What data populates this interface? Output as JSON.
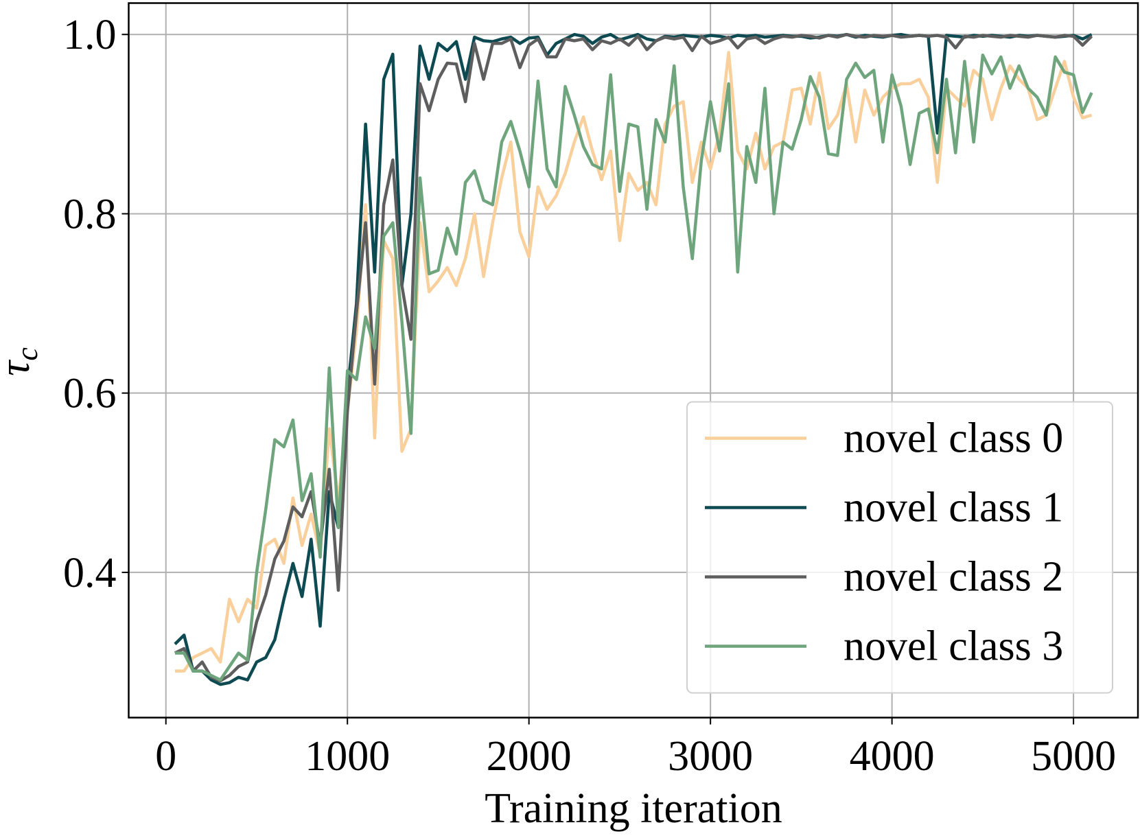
{
  "chart_data": {
    "type": "line",
    "xlabel": "Training iteration",
    "ylabel_symbol": "τ",
    "ylabel_subscript": "c",
    "xlim": [
      -205,
      5355
    ],
    "ylim": [
      0.238,
      1.035
    ],
    "xticks": [
      0,
      1000,
      2000,
      3000,
      4000,
      5000
    ],
    "yticks": [
      0.4,
      0.6,
      0.8,
      {
        "value": 1,
        "label": "1.0"
      }
    ],
    "grid": true,
    "legend": "lower right",
    "x": [
      50,
      100,
      150,
      200,
      250,
      300,
      350,
      400,
      450,
      500,
      550,
      600,
      650,
      700,
      750,
      800,
      850,
      900,
      950,
      1000,
      1050,
      1100,
      1150,
      1200,
      1250,
      1300,
      1350,
      1400,
      1450,
      1500,
      1550,
      1600,
      1650,
      1700,
      1750,
      1800,
      1850,
      1900,
      1950,
      2000,
      2050,
      2100,
      2150,
      2200,
      2250,
      2300,
      2350,
      2400,
      2450,
      2500,
      2550,
      2600,
      2650,
      2700,
      2750,
      2800,
      2850,
      2900,
      2950,
      3000,
      3050,
      3100,
      3150,
      3200,
      3250,
      3300,
      3350,
      3400,
      3450,
      3500,
      3550,
      3600,
      3650,
      3700,
      3750,
      3800,
      3850,
      3900,
      3950,
      4000,
      4050,
      4100,
      4150,
      4200,
      4250,
      4300,
      4350,
      4400,
      4450,
      4500,
      4550,
      4600,
      4650,
      4700,
      4750,
      4800,
      4850,
      4900,
      4950,
      5000,
      5050,
      5100
    ],
    "series": [
      {
        "name": "novel class 0",
        "color": "#f9cf9c",
        "values": [
          0.29,
          0.29,
          0.305,
          0.31,
          0.315,
          0.3,
          0.37,
          0.345,
          0.37,
          0.36,
          0.43,
          0.437,
          0.41,
          0.483,
          0.43,
          0.465,
          0.42,
          0.56,
          0.48,
          0.58,
          0.67,
          0.81,
          0.55,
          0.77,
          0.75,
          0.535,
          0.56,
          0.79,
          0.713,
          0.725,
          0.74,
          0.72,
          0.75,
          0.8,
          0.73,
          0.79,
          0.84,
          0.88,
          0.78,
          0.752,
          0.83,
          0.805,
          0.82,
          0.845,
          0.88,
          0.908,
          0.87,
          0.838,
          0.87,
          0.77,
          0.845,
          0.826,
          0.835,
          0.81,
          0.9,
          0.92,
          0.925,
          0.835,
          0.88,
          0.85,
          0.89,
          0.98,
          0.87,
          0.85,
          0.89,
          0.85,
          0.875,
          0.88,
          0.938,
          0.94,
          0.9,
          0.957,
          0.895,
          0.91,
          0.945,
          0.88,
          0.938,
          0.91,
          0.93,
          0.94,
          0.945,
          0.945,
          0.95,
          0.93,
          0.835,
          0.94,
          0.93,
          0.92,
          0.96,
          0.95,
          0.905,
          0.94,
          0.965,
          0.95,
          0.94,
          0.905,
          0.91,
          0.94,
          0.97,
          0.93,
          0.907,
          0.91
        ]
      },
      {
        "name": "novel class 1",
        "color": "#0d4a52",
        "values": [
          0.32,
          0.33,
          0.29,
          0.29,
          0.28,
          0.275,
          0.277,
          0.283,
          0.28,
          0.3,
          0.305,
          0.325,
          0.37,
          0.41,
          0.373,
          0.437,
          0.34,
          0.49,
          0.45,
          0.6,
          0.7,
          0.9,
          0.735,
          0.95,
          0.978,
          0.72,
          0.8,
          0.987,
          0.95,
          0.99,
          0.982,
          0.992,
          0.95,
          0.997,
          0.993,
          0.992,
          0.995,
          0.997,
          0.99,
          0.996,
          0.997,
          0.977,
          0.99,
          0.995,
          1.0,
          0.998,
          0.99,
          0.997,
          1.0,
          0.994,
          0.997,
          1.0,
          0.995,
          0.993,
          0.998,
          0.997,
          0.999,
          0.998,
          0.997,
          0.999,
          0.998,
          0.996,
          0.999,
          0.998,
          0.999,
          0.997,
          0.998,
          0.999,
          0.998,
          0.998,
          0.996,
          0.997,
          0.999,
          0.998,
          1.0,
          0.997,
          0.999,
          0.998,
          0.997,
          0.999,
          1.0,
          0.998,
          0.999,
          0.998,
          0.89,
          0.999,
          0.998,
          0.997,
          0.999,
          0.998,
          0.999,
          0.998,
          0.997,
          0.999,
          0.998,
          0.999,
          0.998,
          0.997,
          0.998,
          0.999,
          0.995,
          1.0
        ]
      },
      {
        "name": "novel class 2",
        "color": "#5e5e5e",
        "values": [
          0.31,
          0.315,
          0.29,
          0.3,
          0.283,
          0.279,
          0.285,
          0.295,
          0.3,
          0.345,
          0.375,
          0.415,
          0.435,
          0.473,
          0.462,
          0.49,
          0.43,
          0.515,
          0.38,
          0.58,
          0.69,
          0.79,
          0.61,
          0.81,
          0.86,
          0.72,
          0.66,
          0.945,
          0.915,
          0.95,
          0.968,
          0.967,
          0.925,
          0.99,
          0.95,
          0.99,
          0.99,
          0.995,
          0.963,
          0.988,
          0.995,
          0.975,
          0.975,
          0.995,
          0.993,
          0.995,
          0.983,
          0.993,
          0.99,
          0.995,
          0.988,
          0.998,
          0.983,
          0.993,
          0.997,
          0.995,
          0.997,
          0.982,
          0.998,
          0.99,
          0.993,
          0.997,
          0.985,
          0.995,
          0.997,
          0.99,
          0.995,
          0.998,
          0.997,
          0.999,
          0.998,
          0.996,
          0.999,
          0.997,
          1.0,
          0.998,
          0.997,
          0.999,
          0.998,
          0.999,
          0.997,
          0.998,
          0.999,
          0.998,
          0.999,
          0.997,
          0.985,
          0.998,
          0.997,
          0.999,
          0.998,
          0.997,
          0.999,
          0.998,
          0.997,
          0.999,
          0.998,
          0.997,
          0.999,
          0.998,
          0.988,
          0.998
        ]
      },
      {
        "name": "novel class 3",
        "color": "#6fa57d",
        "values": [
          0.31,
          0.31,
          0.29,
          0.29,
          0.285,
          0.28,
          0.295,
          0.31,
          0.302,
          0.4,
          0.47,
          0.548,
          0.54,
          0.57,
          0.48,
          0.51,
          0.417,
          0.628,
          0.45,
          0.625,
          0.615,
          0.685,
          0.65,
          0.775,
          0.79,
          0.68,
          0.555,
          0.84,
          0.733,
          0.737,
          0.784,
          0.755,
          0.835,
          0.848,
          0.815,
          0.81,
          0.88,
          0.903,
          0.87,
          0.83,
          0.948,
          0.85,
          0.83,
          0.942,
          0.91,
          0.875,
          0.855,
          0.85,
          0.955,
          0.825,
          0.9,
          0.897,
          0.805,
          0.905,
          0.88,
          0.965,
          0.83,
          0.75,
          0.86,
          0.925,
          0.87,
          0.945,
          0.735,
          0.875,
          0.835,
          0.94,
          0.8,
          0.88,
          0.872,
          0.905,
          0.953,
          0.93,
          0.867,
          0.865,
          0.95,
          0.968,
          0.952,
          0.96,
          0.88,
          0.955,
          0.92,
          0.855,
          0.912,
          0.917,
          0.868,
          0.95,
          0.868,
          0.97,
          0.88,
          0.977,
          0.956,
          0.975,
          0.94,
          0.965,
          0.94,
          0.93,
          0.91,
          0.975,
          0.958,
          0.955,
          0.913,
          0.935
        ]
      }
    ]
  }
}
